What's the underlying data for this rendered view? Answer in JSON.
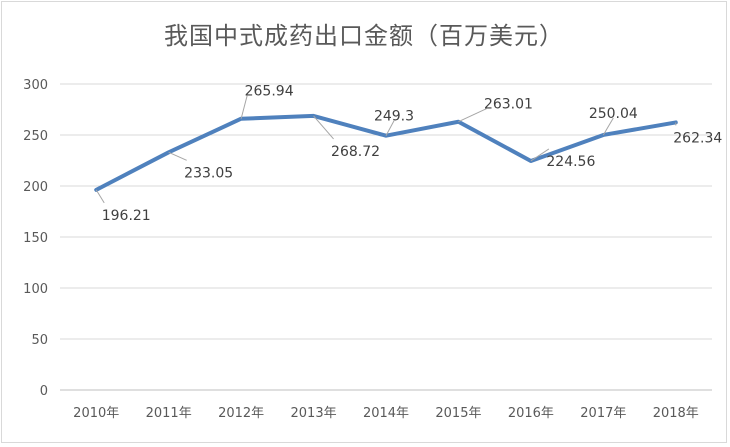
{
  "chart_data": {
    "type": "line",
    "title": "我国中式成药出口金额（百万美元）",
    "categories": [
      "2010年",
      "2011年",
      "2012年",
      "2013年",
      "2014年",
      "2015年",
      "2016年",
      "2017年",
      "2018年"
    ],
    "series": [
      {
        "values": [
          196.21,
          233.05,
          265.94,
          268.72,
          249.3,
          263.01,
          224.56,
          250.04,
          262.34
        ],
        "labels": [
          "196.21",
          "233.05",
          "265.94",
          "268.72",
          "249.3",
          "263.01",
          "224.56",
          "250.04",
          "262.34"
        ],
        "color": "#4f81bd"
      }
    ],
    "ylim": [
      0,
      300
    ],
    "yticks": [
      0,
      50,
      100,
      150,
      200,
      250,
      300
    ],
    "grid": true,
    "legend": "none",
    "colors": {
      "grid": "#d9d9d9",
      "axis": "#bfbfbf",
      "leader": "#a6a6a6",
      "text": "#595959"
    }
  }
}
